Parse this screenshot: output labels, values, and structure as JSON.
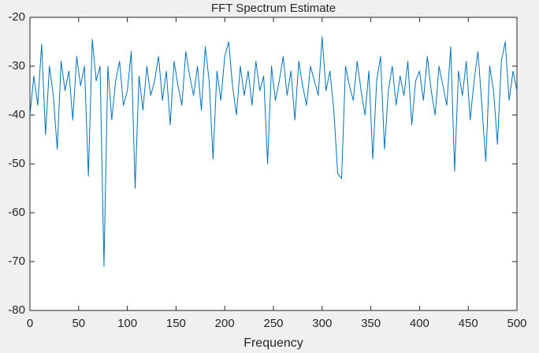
{
  "chart_data": {
    "type": "line",
    "title": "FFT Spectrum Estimate",
    "xlabel": "Frequency",
    "x": [
      0,
      4,
      8,
      12,
      16,
      20,
      24,
      28,
      32,
      36,
      40,
      44,
      48,
      52,
      56,
      60,
      64,
      68,
      72,
      76,
      80,
      84,
      88,
      92,
      96,
      100,
      104,
      108,
      112,
      116,
      120,
      124,
      128,
      132,
      136,
      140,
      144,
      148,
      152,
      156,
      160,
      164,
      168,
      172,
      176,
      180,
      184,
      188,
      192,
      196,
      200,
      204,
      208,
      212,
      216,
      220,
      224,
      228,
      232,
      236,
      240,
      244,
      248,
      252,
      256,
      260,
      264,
      268,
      272,
      276,
      280,
      284,
      288,
      292,
      296,
      300,
      304,
      308,
      312,
      316,
      320,
      324,
      328,
      332,
      336,
      340,
      344,
      348,
      352,
      356,
      360,
      364,
      368,
      372,
      376,
      380,
      384,
      388,
      392,
      396,
      400,
      404,
      408,
      412,
      416,
      420,
      424,
      428,
      432,
      436,
      440,
      444,
      448,
      452,
      456,
      460,
      464,
      468,
      472,
      476,
      480,
      484,
      488,
      492,
      496,
      500
    ],
    "values": [
      -40,
      -32,
      -38,
      -25.5,
      -44,
      -30,
      -36,
      -47,
      -29,
      -35,
      -31,
      -41,
      -28,
      -34,
      -30,
      -52.5,
      -24.5,
      -33,
      -30,
      -71,
      -30,
      -41,
      -33,
      -29,
      -38,
      -35,
      -27,
      -55,
      -32,
      -39,
      -30,
      -36,
      -33,
      -28,
      -37,
      -31,
      -42,
      -29,
      -34,
      -38,
      -27,
      -32,
      -36,
      -30,
      -39,
      -26,
      -33,
      -49,
      -31,
      -37,
      -28,
      -25,
      -34,
      -40,
      -30,
      -36,
      -31,
      -38,
      -29,
      -35,
      -32,
      -50,
      -30,
      -37,
      -33,
      -28,
      -36,
      -31,
      -41,
      -29,
      -34,
      -38,
      -30,
      -33,
      -36,
      -24,
      -35,
      -31,
      -39,
      -52,
      -53,
      -30,
      -34,
      -37,
      -29,
      -35,
      -40,
      -31,
      -49,
      -33,
      -28,
      -47,
      -35,
      -30,
      -38,
      -32,
      -36,
      -29,
      -42,
      -33,
      -31,
      -37,
      -28,
      -35,
      -40,
      -30,
      -34,
      -38,
      -26,
      -51.5,
      -31,
      -36,
      -29,
      -41,
      -33,
      -27,
      -38,
      -49.5,
      -30,
      -35,
      -46,
      -29,
      -25,
      -37,
      -31,
      -35
    ],
    "color": "#0072bd",
    "xlim": [
      0,
      500
    ],
    "xticks": [
      0,
      50,
      100,
      150,
      200,
      250,
      300,
      350,
      400,
      450,
      500
    ],
    "ylim": [
      -80,
      -20
    ],
    "yticks": [
      -80,
      -70,
      -60,
      -50,
      -40,
      -30,
      -20
    ]
  }
}
